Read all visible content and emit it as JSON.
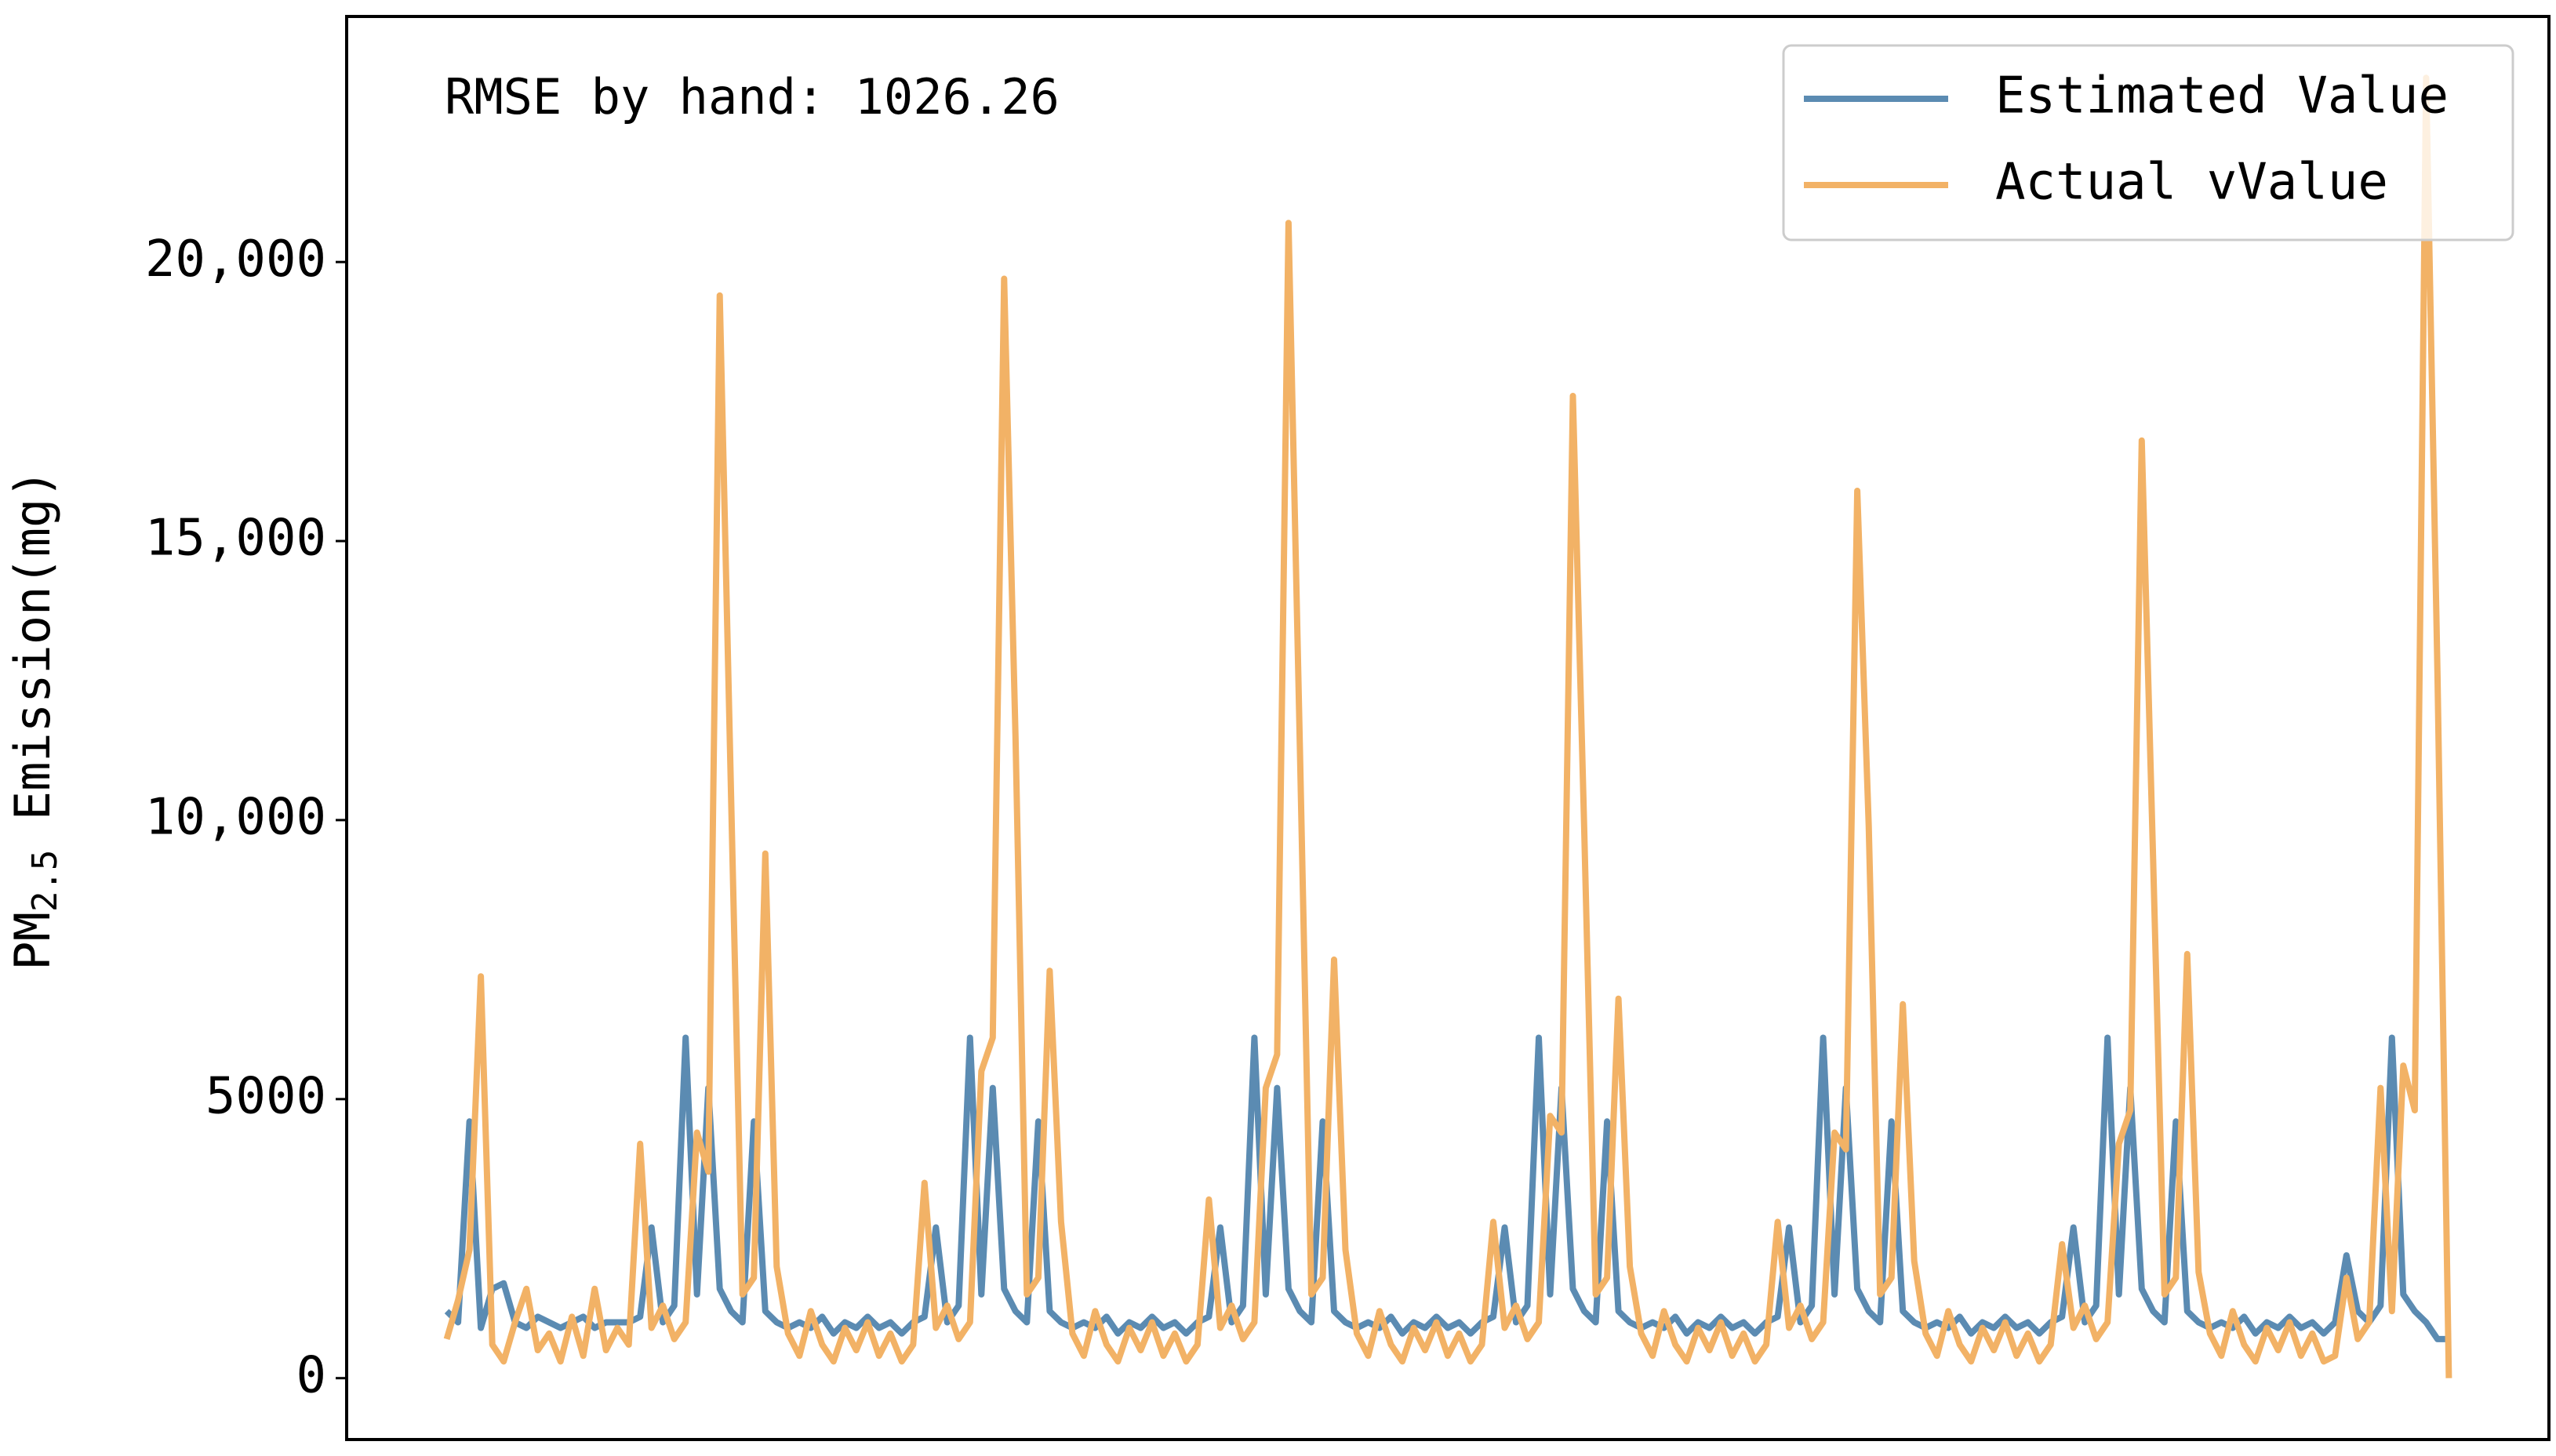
{
  "chart_data": {
    "type": "line",
    "y_label_parts": [
      "PM",
      "2.5",
      " Emission(mg)"
    ],
    "annotation": "RMSE by hand: 1026.26",
    "legend": "upper right",
    "ylim": [
      -1100,
      24400
    ],
    "yticks": [
      0,
      5000,
      {
        "value": 10000,
        "label": "10,000"
      },
      {
        "value": 15000,
        "label": "15,000"
      },
      {
        "value": 20000,
        "label": "20,000"
      }
    ],
    "series": [
      {
        "name": "Estimated Value",
        "color": "#5b8bb2",
        "values": [
          1200,
          1000,
          4600,
          900,
          1600,
          1700,
          1000,
          900,
          1100,
          1000,
          900,
          1000,
          1100,
          900,
          1000,
          1000,
          1000,
          1100,
          2700,
          1000,
          1300,
          6100,
          1500,
          5200,
          1600,
          1200,
          1000,
          4600,
          1200,
          1000,
          900,
          1000,
          900,
          1100,
          800,
          1000,
          900,
          1100,
          900,
          1000,
          800,
          1000,
          1100,
          2700,
          1000,
          1300,
          6100,
          1500,
          5200,
          1600,
          1200,
          1000,
          4600,
          1200,
          1000,
          900,
          1000,
          900,
          1100,
          800,
          1000,
          900,
          1100,
          900,
          1000,
          800,
          1000,
          1100,
          2700,
          1000,
          1300,
          6100,
          1500,
          5200,
          1600,
          1200,
          1000,
          4600,
          1200,
          1000,
          900,
          1000,
          900,
          1100,
          800,
          1000,
          900,
          1100,
          900,
          1000,
          800,
          1000,
          1100,
          2700,
          1000,
          1300,
          6100,
          1500,
          5200,
          1600,
          1200,
          1000,
          4600,
          1200,
          1000,
          900,
          1000,
          900,
          1100,
          800,
          1000,
          900,
          1100,
          900,
          1000,
          800,
          1000,
          1100,
          2700,
          1000,
          1300,
          6100,
          1500,
          5200,
          1600,
          1200,
          1000,
          4600,
          1200,
          1000,
          900,
          1000,
          900,
          1100,
          800,
          1000,
          900,
          1100,
          900,
          1000,
          800,
          1000,
          1100,
          2700,
          1000,
          1300,
          6100,
          1500,
          5200,
          1600,
          1200,
          1000,
          4600,
          1200,
          1000,
          900,
          1000,
          900,
          1100,
          800,
          1000,
          900,
          1100,
          900,
          1000,
          800,
          1000,
          2200,
          1200,
          1000,
          1300,
          6100,
          1500,
          1200,
          1000,
          700,
          700
        ]
      },
      {
        "name": "Actual vValue",
        "color": "#f2b266",
        "values": [
          700,
          1400,
          2300,
          7200,
          600,
          300,
          1000,
          1600,
          500,
          800,
          300,
          1100,
          400,
          1600,
          500,
          900,
          600,
          4200,
          900,
          1300,
          700,
          1000,
          4400,
          3700,
          19400,
          10400,
          1500,
          1800,
          9400,
          2000,
          800,
          400,
          1200,
          600,
          300,
          900,
          500,
          1000,
          400,
          800,
          300,
          600,
          3500,
          900,
          1300,
          700,
          1000,
          5500,
          6100,
          19700,
          11500,
          1500,
          1800,
          7300,
          2800,
          800,
          400,
          1200,
          600,
          300,
          900,
          500,
          1000,
          400,
          800,
          300,
          600,
          3200,
          900,
          1300,
          700,
          1000,
          5200,
          5800,
          20700,
          11300,
          1500,
          1800,
          7500,
          2300,
          800,
          400,
          1200,
          600,
          300,
          900,
          500,
          1000,
          400,
          800,
          300,
          600,
          2800,
          900,
          1300,
          700,
          1000,
          4700,
          4400,
          17600,
          9800,
          1500,
          1800,
          6800,
          2000,
          800,
          400,
          1200,
          600,
          300,
          900,
          500,
          1000,
          400,
          800,
          300,
          600,
          2800,
          900,
          1300,
          700,
          1000,
          4400,
          4100,
          15900,
          9900,
          1500,
          1800,
          6700,
          2100,
          800,
          400,
          1200,
          600,
          300,
          900,
          500,
          1000,
          400,
          800,
          300,
          600,
          2400,
          900,
          1300,
          700,
          1000,
          4200,
          4800,
          16800,
          9300,
          1500,
          1800,
          7600,
          1900,
          800,
          400,
          1200,
          600,
          300,
          900,
          500,
          1000,
          400,
          800,
          300,
          400,
          1800,
          700,
          1000,
          5200,
          1200,
          5600,
          4800,
          23300,
          12600,
          0
        ]
      }
    ]
  }
}
